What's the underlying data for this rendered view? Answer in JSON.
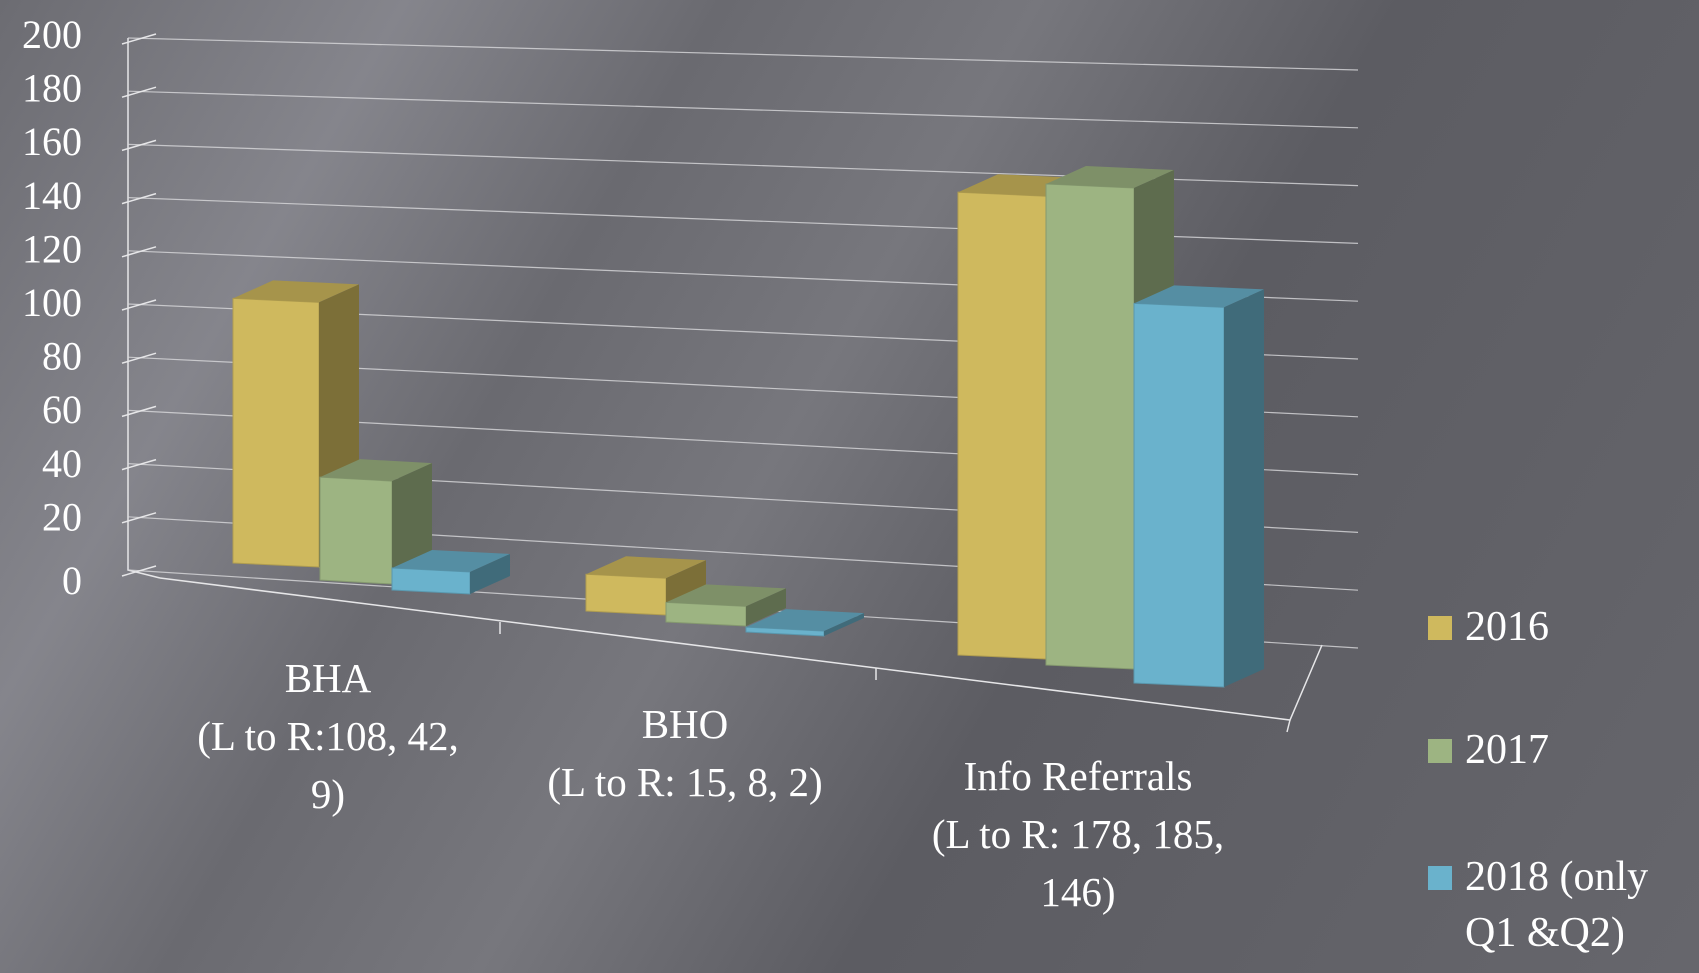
{
  "chart_data": {
    "type": "bar",
    "title": "",
    "categories": [
      [
        "BHA",
        "(L to R:108, 42,",
        "9)"
      ],
      [
        "BHO",
        "(L to R: 15, 8, 2)"
      ],
      [
        "Info Referrals",
        "(L to R: 178, 185,",
        "146)"
      ]
    ],
    "series": [
      {
        "name": "2016",
        "values": [
          108,
          15,
          178
        ],
        "color": "#cfb95e"
      },
      {
        "name": "2017",
        "values": [
          42,
          8,
          185
        ],
        "color": "#9db482"
      },
      {
        "name": "2018 (only Q1 &Q2)",
        "values": [
          9,
          2,
          146
        ],
        "color": "#6ab2cc"
      }
    ],
    "legend_lines": [
      [
        "2016"
      ],
      [
        "2017"
      ],
      [
        "2018 (only",
        "Q1 &Q2)"
      ]
    ],
    "yticks": [
      "0",
      "20",
      "40",
      "60",
      "80",
      "100",
      "120",
      "140",
      "160",
      "180",
      "200"
    ],
    "ylim": [
      0,
      200
    ],
    "grid": true,
    "legend_position": "right",
    "three_d": true
  }
}
